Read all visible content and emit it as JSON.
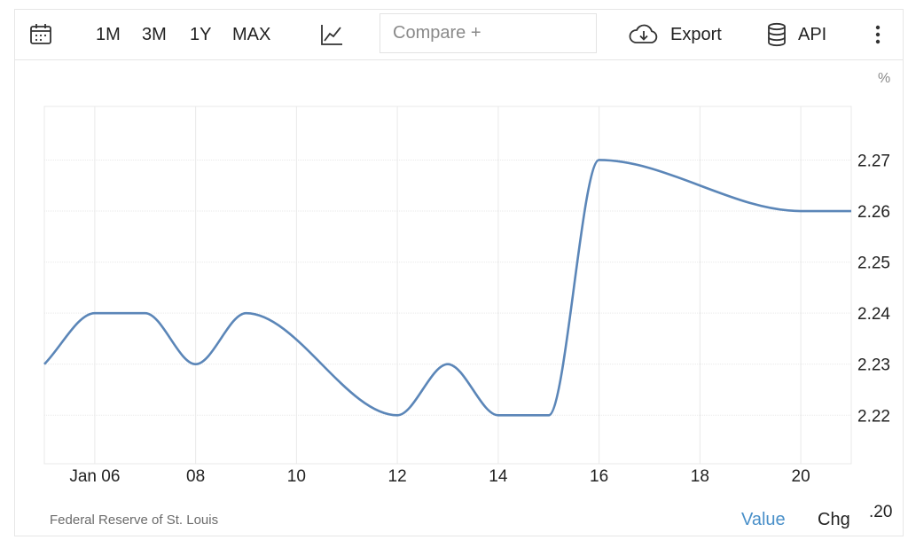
{
  "toolbar": {
    "ranges": [
      "1M",
      "3M",
      "1Y",
      "MAX"
    ],
    "compare_placeholder": "Compare +",
    "export_label": "Export",
    "api_label": "API"
  },
  "icons": {
    "calendar": "calendar-icon",
    "chart_type": "line-chart-icon",
    "export": "cloud-download-icon",
    "api": "database-icon",
    "more": "more-vertical-icon"
  },
  "colors": {
    "line": "#5b86b8",
    "accent": "#4a90c9",
    "grid": "#e9e9e9"
  },
  "unit_label": "%",
  "source": "Federal Reserve of St. Louis",
  "bottom_tabs": {
    "value": "Value",
    "chg": "Chg"
  },
  "overflow_tick": ".20",
  "chart_data": {
    "type": "line",
    "title": "",
    "xlabel": "",
    "ylabel": "%",
    "x": [
      5,
      6,
      7,
      8,
      9,
      12,
      13,
      14,
      15,
      16,
      20,
      21
    ],
    "values": [
      2.23,
      2.24,
      2.24,
      2.23,
      2.24,
      2.22,
      2.23,
      2.22,
      2.22,
      2.27,
      2.26,
      2.26
    ],
    "x_ticks": [
      6,
      8,
      10,
      12,
      14,
      16,
      18,
      20
    ],
    "x_tick_labels": [
      "Jan 06",
      "08",
      "10",
      "12",
      "14",
      "16",
      "18",
      "20"
    ],
    "y_ticks": [
      2.22,
      2.23,
      2.24,
      2.25,
      2.26,
      2.27
    ],
    "y_tick_labels": [
      "2.22",
      "2.23",
      "2.24",
      "2.25",
      "2.26",
      "2.27"
    ],
    "xlim": [
      5,
      21
    ],
    "ylim": [
      2.2105,
      2.2805
    ],
    "grid": true,
    "y_axis_side": "right"
  }
}
